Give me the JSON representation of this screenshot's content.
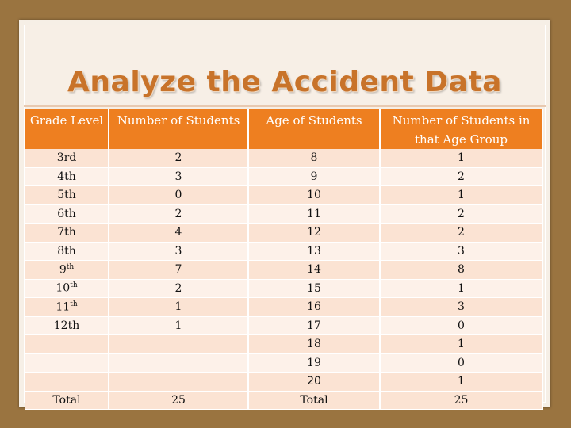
{
  "title": "Analyze the Accident Data",
  "headers": {
    "grade": "Grade Level",
    "num_students": "Number of Students",
    "age": "Age of Students",
    "num_in_age": "Number of Students in that Age Group"
  },
  "rows": [
    {
      "grade": "3rd",
      "grade_sup": "",
      "count": "2",
      "age": "8",
      "age_count": "1"
    },
    {
      "grade": "4th",
      "grade_sup": "",
      "count": "3",
      "age": "9",
      "age_count": "2"
    },
    {
      "grade": "5th",
      "grade_sup": "",
      "count": "0",
      "age": "10",
      "age_count": "1"
    },
    {
      "grade": "6th",
      "grade_sup": "",
      "count": "2",
      "age": "11",
      "age_count": "2"
    },
    {
      "grade": "7th",
      "grade_sup": "",
      "count": "4",
      "age": "12",
      "age_count": "2"
    },
    {
      "grade": "8th",
      "grade_sup": "",
      "count": "3",
      "age": "13",
      "age_count": "3"
    },
    {
      "grade": "9",
      "grade_sup": "th",
      "count": "7",
      "age": "14",
      "age_count": "8"
    },
    {
      "grade": "10",
      "grade_sup": "th",
      "count": "2",
      "age": "15",
      "age_count": "1"
    },
    {
      "grade": "11",
      "grade_sup": "th",
      "count": "1",
      "age": "16",
      "age_count": "3"
    },
    {
      "grade": "12th",
      "grade_sup": "",
      "count": "1",
      "age": "17",
      "age_count": "0"
    },
    {
      "grade": "",
      "grade_sup": "",
      "count": "",
      "age": "18",
      "age_count": "1"
    },
    {
      "grade": "",
      "grade_sup": "",
      "count": "",
      "age": "19",
      "age_count": "0"
    },
    {
      "grade": "",
      "grade_sup": "",
      "count": "",
      "age": "20",
      "age_count": "1"
    }
  ],
  "totals": {
    "grade_label": "Total",
    "count": "25",
    "age_label": "Total",
    "age_count": "25"
  },
  "colors": {
    "header": "#ee7f20",
    "row_dark": "#fbe3d3",
    "row_light": "#fdf1e9",
    "title": "#c8732a",
    "frame": "#9a7440"
  }
}
